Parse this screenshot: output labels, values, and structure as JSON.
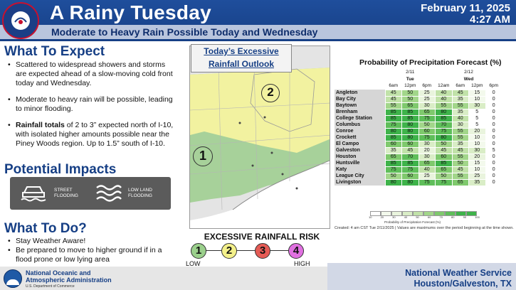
{
  "header": {
    "title": "A Rainy Tuesday",
    "subtitle": "Moderate to Heavy Rain Possible Today and Wednesday",
    "date": "February 11, 2025",
    "time": "4:27 AM",
    "logo_text": "NATIONAL WEATHER SERVICE",
    "colors": {
      "header_blue": "#1f4e9c",
      "strip": "#b9c5dd"
    }
  },
  "expect": {
    "title": "What To Expect",
    "bullets": [
      "Scattered to widespread showers and storms are expected ahead of a slow-moving cold front today and Wednesday.",
      "Moderate to heavy rain will be possible, leading to minor flooding."
    ],
    "rain_bullet": {
      "bold": "Rainfall totals",
      "rest": " of 2 to 3” expected north of I-10, with isolated higher amounts possible near the Piney Woods region. Up to 1.5” south of I-10."
    }
  },
  "impacts": {
    "title": "Potential Impacts",
    "items": [
      {
        "label_line1": "STREET",
        "label_line2": "FLOODING",
        "icon": "car-flooding-icon"
      },
      {
        "label_line1": "LOW LAND",
        "label_line2": "FLOODING",
        "icon": "waves-icon"
      }
    ]
  },
  "todo": {
    "title": "What To Do?",
    "bullets": [
      "Stay Weather Aware!",
      "Be prepared to move to higher ground if in a flood prone or low lying area"
    ]
  },
  "map": {
    "title_line1": "Today’s Excessive",
    "title_line2": "Rainfall Outlook",
    "risk_labels": [
      "2",
      "1"
    ],
    "colors": {
      "slight_yellow": "#f2f2a0",
      "marginal_green": "#a7d19a"
    }
  },
  "risk": {
    "title": "EXCESSIVE RAINFALL RISK",
    "levels": [
      {
        "label": "1",
        "color": "#9bd08c"
      },
      {
        "label": "2",
        "color": "#f3f08a"
      },
      {
        "label": "3",
        "color": "#e55b55"
      },
      {
        "label": "4",
        "color": "#e070e0"
      }
    ],
    "low": "LOW",
    "high": "HIGH"
  },
  "pop": {
    "title": "Probability of Precipitation Forecast (%)",
    "date1": "2/11",
    "day1": "Tue",
    "date2": "2/12",
    "day2": "Wed",
    "times": [
      "6am",
      "12pm",
      "6pm",
      "12am",
      "6am",
      "12pm",
      "6pm"
    ],
    "rows": [
      {
        "loc": "Angleton",
        "vals": [
          45,
          50,
          25,
          40,
          45,
          15,
          0
        ]
      },
      {
        "loc": "Bay City",
        "vals": [
          45,
          50,
          25,
          40,
          35,
          10,
          0
        ]
      },
      {
        "loc": "Baytown",
        "vals": [
          55,
          65,
          30,
          55,
          55,
          30,
          0
        ]
      },
      {
        "loc": "Brenham",
        "vals": [
          85,
          85,
          65,
          80,
          35,
          5,
          0
        ]
      },
      {
        "loc": "College Station",
        "vals": [
          85,
          85,
          75,
          85,
          40,
          5,
          0
        ]
      },
      {
        "loc": "Columbus",
        "vals": [
          75,
          80,
          50,
          70,
          30,
          5,
          0
        ]
      },
      {
        "loc": "Conroe",
        "vals": [
          80,
          80,
          60,
          75,
          55,
          20,
          0
        ]
      },
      {
        "loc": "Crockett",
        "vals": [
          85,
          80,
          75,
          80,
          55,
          10,
          0
        ]
      },
      {
        "loc": "El Campo",
        "vals": [
          60,
          60,
          30,
          50,
          35,
          10,
          0
        ]
      },
      {
        "loc": "Galveston",
        "vals": [
          35,
          45,
          20,
          45,
          45,
          30,
          5
        ]
      },
      {
        "loc": "Houston",
        "vals": [
          65,
          70,
          30,
          60,
          55,
          20,
          0
        ]
      },
      {
        "loc": "Huntsville",
        "vals": [
          85,
          85,
          65,
          85,
          50,
          15,
          0
        ]
      },
      {
        "loc": "Katy",
        "vals": [
          75,
          75,
          40,
          65,
          45,
          10,
          0
        ]
      },
      {
        "loc": "League City",
        "vals": [
          50,
          60,
          25,
          50,
          55,
          25,
          0
        ]
      },
      {
        "loc": "Livingston",
        "vals": [
          80,
          80,
          75,
          75,
          65,
          35,
          0
        ]
      }
    ],
    "legend_caption": "Probability of Precipitation Forecast (%)",
    "legend_ticks": [
      "10",
      "20",
      "30",
      "40",
      "50",
      "60",
      "70",
      "80",
      "90",
      "100"
    ],
    "created": "Created: 4 am CST Tue 2/11/2025  |  Values are maximums over the period beginning at the time shown."
  },
  "footer": {
    "noaa_line1": "National Oceanic and",
    "noaa_line2": "Atmospheric Administration",
    "noaa_line3": "U.S. Department of Commerce",
    "nws_line1": "National Weather Service",
    "nws_line2": "Houston/Galveston, TX"
  }
}
